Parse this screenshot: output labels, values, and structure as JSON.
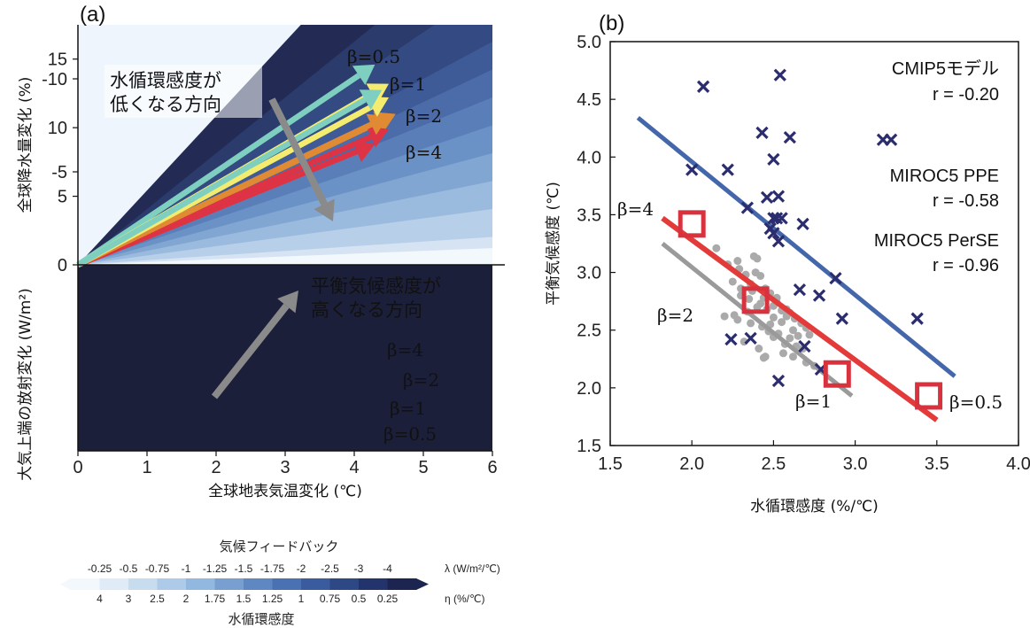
{
  "chart_data": [
    {
      "panel": "(a)",
      "type": "line",
      "xlabel": "全球地表気温変化 (℃)",
      "ylabel_top": "全球降水量変化 (%)",
      "ylabel_bottom": "大気上端の放射変化 (W/m²)",
      "xlim": [
        0,
        6
      ],
      "ylim_top": [
        0,
        17.5
      ],
      "ylim_bottom": [
        -10,
        0
      ],
      "x_ticks": [
        "0",
        "1",
        "2",
        "3",
        "4",
        "5",
        "6"
      ],
      "y_ticks_top": [
        "0",
        "5",
        "10",
        "15"
      ],
      "y_ticks_bottom": [
        "-5",
        "-10"
      ],
      "background_fan": {
        "top_slopes": [
          2.0,
          1.5,
          1.25,
          1.0,
          0.75,
          0.5,
          0.25
        ],
        "bottom_slopes": [
          -0.25,
          -0.5,
          -0.75,
          -1,
          -1.25,
          -1.5,
          -1.75,
          -2,
          -2.5,
          -3,
          -4
        ]
      },
      "series_top": [
        {
          "name": "β=0.5",
          "color": "#7ecfc0",
          "x": [
            0,
            4.3
          ],
          "y": [
            0,
            14.6
          ]
        },
        {
          "name": "β=1",
          "color": "#f4ec6e",
          "x": [
            0,
            4.5
          ],
          "y": [
            0,
            13.2
          ]
        },
        {
          "name": "β=2",
          "color": "#e08a33",
          "x": [
            0,
            4.6
          ],
          "y": [
            0,
            11.0
          ]
        },
        {
          "name": "β=4",
          "color": "#dd3344",
          "x": [
            0,
            4.3
          ],
          "y": [
            0,
            8.8
          ]
        }
      ],
      "series_bottom": [
        {
          "name": "β=4",
          "color": "#dd3344",
          "x": [
            0,
            4.5
          ],
          "y": [
            0,
            -7.3
          ]
        },
        {
          "name": "β=2",
          "color": "#e08a33",
          "x": [
            0,
            4.5
          ],
          "y": [
            0,
            -8.0
          ]
        },
        {
          "name": "β=1",
          "color": "#f4ec6e",
          "x": [
            0,
            4.5
          ],
          "y": [
            0,
            -9.0
          ]
        },
        {
          "name": "β=0.5",
          "color": "#7ecfc0",
          "x": [
            0,
            4.4
          ],
          "y": [
            0,
            -9.4
          ]
        }
      ],
      "annotations": {
        "top": [
          "水循環感度が",
          "低くなる方向"
        ],
        "bottom": [
          "平衡気候感度が",
          "高くなる方向"
        ]
      },
      "colorbar": {
        "title": "気候フィードバック",
        "lambda_labels": [
          "-0.25",
          "-0.5",
          "-0.75",
          "-1",
          "-1.25",
          "-1.5",
          "-1.75",
          "-2",
          "-2.5",
          "-3",
          "-4"
        ],
        "lambda_unit": "λ (W/m²/℃)",
        "eta_labels": [
          "4",
          "3",
          "2.5",
          "2",
          "1.75",
          "1.5",
          "1.25",
          "1",
          "0.75",
          "0.5",
          "0.25"
        ],
        "eta_unit": "η (%/℃)",
        "subtitle": "水循環感度",
        "colors": [
          "#f3f8fd",
          "#dfebf7",
          "#c8dcf0",
          "#adcae8",
          "#93b8df",
          "#789fd0",
          "#5f88c3",
          "#4a71b2",
          "#3a5c9e",
          "#2e4886",
          "#23336c",
          "#1b2550"
        ]
      }
    },
    {
      "panel": "(b)",
      "type": "scatter",
      "xlabel": "水循環感度 (%/℃)",
      "ylabel": "平衡気候感度 (℃)",
      "xlim": [
        1.5,
        4.0
      ],
      "ylim": [
        1.5,
        5.0
      ],
      "x_ticks": [
        "1.5",
        "2.0",
        "2.5",
        "3.0",
        "3.5",
        "4.0"
      ],
      "y_ticks": [
        "1.5",
        "2.0",
        "2.5",
        "3.0",
        "3.5",
        "4.0",
        "4.5",
        "5.0"
      ],
      "cmip5": {
        "name": "CMIP5モデル",
        "r_text": "r = -0.20",
        "color": "#2b2d6e",
        "x": [
          2.07,
          2.54,
          2.0,
          2.22,
          2.43,
          2.6,
          2.5,
          2.53,
          2.46,
          3.17,
          3.22,
          2.34,
          2.5,
          2.52,
          2.55,
          2.48,
          2.5,
          2.68,
          2.53,
          2.66,
          2.88,
          2.78,
          2.92,
          3.38,
          2.24,
          2.36,
          2.69,
          2.79,
          2.53
        ],
        "y": [
          4.61,
          4.71,
          3.89,
          3.89,
          4.21,
          4.17,
          3.98,
          3.66,
          3.65,
          4.15,
          4.15,
          3.56,
          3.47,
          3.47,
          3.47,
          3.38,
          3.34,
          3.42,
          3.27,
          2.85,
          2.95,
          2.8,
          2.6,
          2.6,
          2.42,
          2.43,
          2.36,
          2.16,
          2.06
        ],
        "fit": {
          "x": [
            1.67,
            3.61
          ],
          "y": [
            4.34,
            2.1
          ],
          "color": "#4466aa"
        }
      },
      "miroc5_ppe": {
        "name": "MIROC5 PPE",
        "r_text": "r = -0.58",
        "color": "#aaaaaa",
        "x": [
          2.15,
          2.22,
          2.28,
          2.33,
          2.36,
          2.38,
          2.4,
          2.42,
          2.45,
          2.48,
          2.5,
          2.52,
          2.55,
          2.58,
          2.6,
          2.63,
          2.67,
          2.7,
          2.3,
          2.35,
          2.42,
          2.46,
          2.5,
          2.55,
          2.62,
          2.25,
          2.3,
          2.37,
          2.44,
          2.52,
          2.58,
          2.65,
          2.72,
          2.2,
          2.28,
          2.34,
          2.4,
          2.47,
          2.53,
          2.6,
          2.68,
          2.36,
          2.43,
          2.5,
          2.57,
          2.64,
          2.29,
          2.39,
          2.48,
          2.56,
          2.32,
          2.41,
          2.45,
          2.62,
          2.7,
          2.75,
          2.26,
          2.44
        ],
        "y": [
          3.21,
          3.07,
          3.1,
          2.98,
          2.9,
          3.14,
          3.12,
          2.97,
          2.86,
          2.82,
          2.71,
          2.78,
          2.67,
          2.62,
          2.65,
          2.6,
          2.56,
          2.52,
          2.8,
          2.77,
          2.73,
          2.68,
          2.61,
          2.57,
          2.5,
          2.92,
          2.86,
          2.84,
          2.78,
          2.74,
          2.68,
          2.45,
          2.46,
          2.62,
          2.59,
          2.66,
          2.7,
          2.49,
          2.47,
          2.43,
          2.34,
          2.56,
          2.53,
          2.44,
          2.38,
          2.36,
          3.03,
          3.0,
          2.55,
          2.3,
          2.4,
          2.34,
          2.27,
          2.27,
          2.22,
          2.19,
          2.63,
          2.26
        ],
        "fit": {
          "x": [
            1.82,
            2.98
          ],
          "y": [
            3.25,
            1.93
          ],
          "color": "#9a9a9a"
        }
      },
      "miroc5_perse": {
        "name": "MIROC5 PerSE",
        "r_text": "r = -0.96",
        "color": "#d9323f",
        "points": [
          {
            "label": "β=4",
            "x": 2.0,
            "y": 3.42
          },
          {
            "label": "β=2",
            "x": 2.39,
            "y": 2.76
          },
          {
            "label": "β=1",
            "x": 2.89,
            "y": 2.12
          },
          {
            "label": "β=0.5",
            "x": 3.45,
            "y": 1.93
          }
        ],
        "fit": {
          "x": [
            1.82,
            3.5
          ],
          "y": [
            3.47,
            1.72
          ],
          "color": "#e33a3a"
        }
      }
    }
  ]
}
